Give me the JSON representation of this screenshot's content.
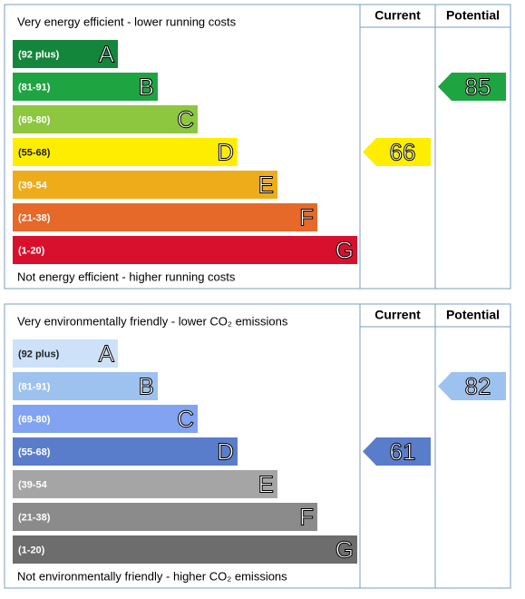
{
  "panels": [
    {
      "top_label": "Very energy efficient - lower running costs",
      "bottom_label": "Not energy efficient - higher running costs",
      "headers": [
        "Current",
        "Potential"
      ],
      "bands": [
        {
          "range": "(92 plus)",
          "letter": "A",
          "color": "#14863c"
        },
        {
          "range": "(81-91)",
          "letter": "B",
          "color": "#1ea541"
        },
        {
          "range": "(69-80)",
          "letter": "C",
          "color": "#8dc63f"
        },
        {
          "range": "(55-68)",
          "letter": "D",
          "color": "#ffed00"
        },
        {
          "range": "(39-54",
          "letter": "E",
          "color": "#efac1a"
        },
        {
          "range": "(21-38)",
          "letter": "F",
          "color": "#e6692a"
        },
        {
          "range": "(1-20)",
          "letter": "G",
          "color": "#d8102e"
        }
      ],
      "current": 66,
      "potential": 85
    },
    {
      "top_label": "Very environmentally friendly - lower CO₂ emissions",
      "bottom_label": "Not environmentally friendly - higher CO₂ emissions",
      "headers": [
        "Current",
        "Potential"
      ],
      "bands": [
        {
          "range": "(92 plus)",
          "letter": "A",
          "color": "#cde2f8"
        },
        {
          "range": "(81-91)",
          "letter": "B",
          "color": "#9dc2ef"
        },
        {
          "range": "(69-80)",
          "letter": "C",
          "color": "#81a3f1"
        },
        {
          "range": "(55-68)",
          "letter": "D",
          "color": "#5a7dcb"
        },
        {
          "range": "(39-54",
          "letter": "E",
          "color": "#a5a5a5"
        },
        {
          "range": "(21-38)",
          "letter": "F",
          "color": "#8b8b8b"
        },
        {
          "range": "(1-20)",
          "letter": "G",
          "color": "#6d6d6d"
        }
      ],
      "current": 61,
      "potential": 82
    }
  ]
}
